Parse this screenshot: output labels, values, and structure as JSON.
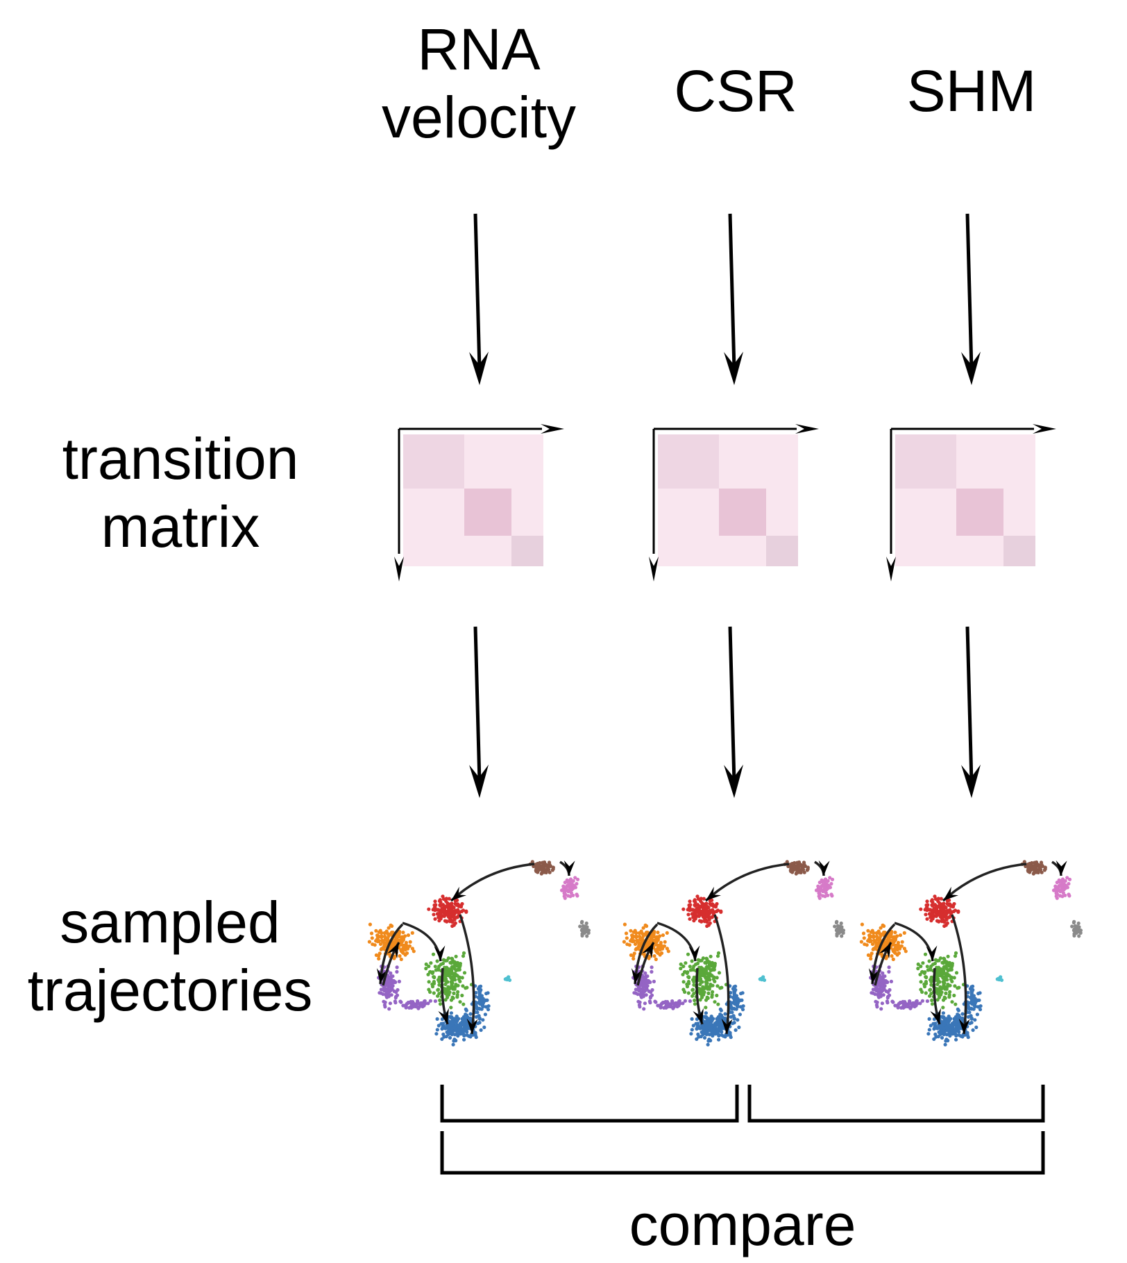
{
  "columns": [
    {
      "label_line1": "RNA",
      "label_line2": "velocity"
    },
    {
      "label": "CSR"
    },
    {
      "label": "SHM"
    }
  ],
  "rows": {
    "transition_matrix": {
      "line1": "transition",
      "line2": "matrix"
    },
    "sampled_trajectories": {
      "line1": "sampled",
      "line2": "trajectories"
    }
  },
  "footer": {
    "compare_label": "compare"
  },
  "colors": {
    "matrix_light": "#f9e6ef",
    "matrix_mid": "#eed6e3",
    "matrix_diag": "#e8c3d6",
    "matrix_corner": "#e7d0dd",
    "cluster_orange": "#f08a1c",
    "cluster_red": "#d62e2e",
    "cluster_purple": "#9464c4",
    "cluster_green": "#5aa83a",
    "cluster_blue": "#3a76b8",
    "cluster_brown": "#8b5a4a",
    "cluster_pink": "#d67ac8",
    "cluster_gray": "#8a8a8a",
    "cluster_cyan": "#4fc0d0"
  }
}
